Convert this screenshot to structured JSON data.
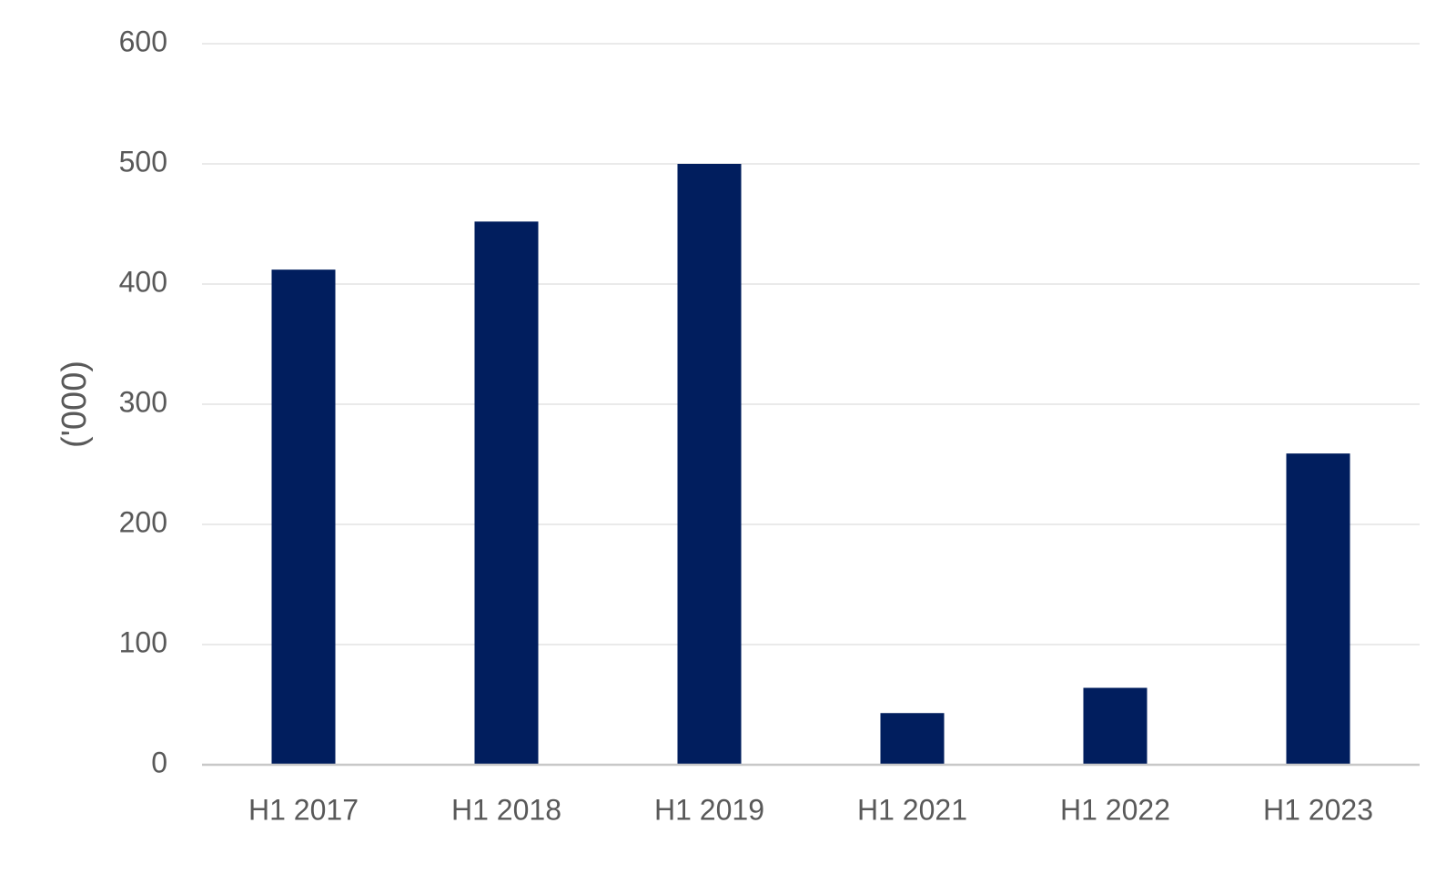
{
  "chart_data": {
    "type": "bar",
    "y_label": "('000)",
    "categories": [
      "H1 2017",
      "H1 2018",
      "H1 2019",
      "H1 2021",
      "H1 2022",
      "H1 2023"
    ],
    "values": [
      412,
      452,
      500,
      43,
      64,
      259
    ],
    "color": "#011e5e",
    "ylim": [
      0,
      600
    ],
    "yticks": [
      0,
      100,
      200,
      300,
      400,
      500,
      600
    ],
    "grid": true
  }
}
